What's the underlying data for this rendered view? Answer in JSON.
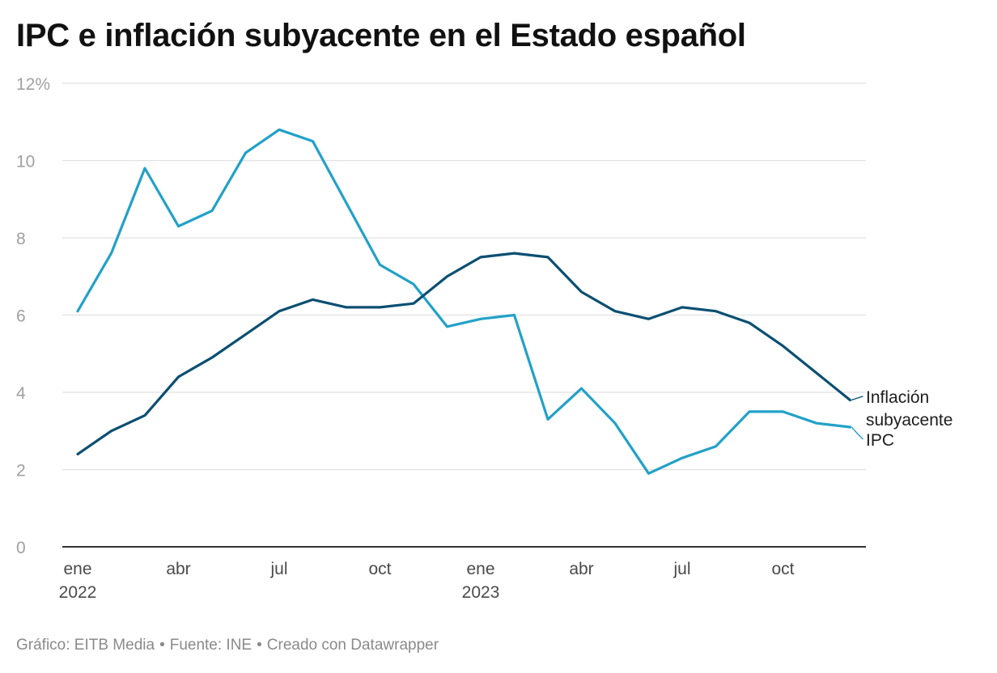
{
  "chart_data": {
    "type": "line",
    "title": "IPC e inflación subyacente en el Estado español",
    "ylim": [
      0,
      12
    ],
    "yticks": [
      0,
      2,
      4,
      6,
      8,
      10,
      12
    ],
    "ytick_labels": [
      "0",
      "2",
      "4",
      "6",
      "8",
      "10",
      "12%"
    ],
    "x": [
      "2022-01",
      "2022-02",
      "2022-03",
      "2022-04",
      "2022-05",
      "2022-06",
      "2022-07",
      "2022-08",
      "2022-09",
      "2022-10",
      "2022-11",
      "2022-12",
      "2023-01",
      "2023-02",
      "2023-03",
      "2023-04",
      "2023-05",
      "2023-06",
      "2023-07",
      "2023-08",
      "2023-09",
      "2023-10",
      "2023-11",
      "2023-12"
    ],
    "xticks": [
      {
        "index": 0,
        "label": "ene",
        "year": "2022"
      },
      {
        "index": 3,
        "label": "abr",
        "year": ""
      },
      {
        "index": 6,
        "label": "jul",
        "year": ""
      },
      {
        "index": 9,
        "label": "oct",
        "year": ""
      },
      {
        "index": 12,
        "label": "ene",
        "year": "2023"
      },
      {
        "index": 15,
        "label": "abr",
        "year": ""
      },
      {
        "index": 18,
        "label": "jul",
        "year": ""
      },
      {
        "index": 21,
        "label": "oct",
        "year": ""
      }
    ],
    "series": [
      {
        "name": "IPC",
        "label_lines": [
          "IPC"
        ],
        "color": "#22a1c8",
        "values": [
          6.1,
          7.6,
          9.8,
          8.3,
          8.7,
          10.2,
          10.8,
          10.5,
          8.9,
          7.3,
          6.8,
          5.7,
          5.9,
          6.0,
          3.3,
          4.1,
          3.2,
          1.9,
          2.3,
          2.6,
          3.5,
          3.5,
          3.2,
          3.1
        ]
      },
      {
        "name": "Inflación subyacente",
        "label_lines": [
          "Inflación",
          "subyacente"
        ],
        "color": "#0b4f72",
        "values": [
          2.4,
          3.0,
          3.4,
          4.4,
          4.9,
          5.5,
          6.1,
          6.4,
          6.2,
          6.2,
          6.3,
          7.0,
          7.5,
          7.6,
          7.5,
          6.6,
          6.1,
          5.9,
          6.2,
          6.1,
          5.8,
          5.2,
          4.5,
          3.8
        ]
      }
    ]
  },
  "footer": {
    "chart_credit": "Gráfico: EITB Media",
    "source": "Fuente: INE",
    "tool": "Creado con Datawrapper",
    "separator": "•"
  }
}
